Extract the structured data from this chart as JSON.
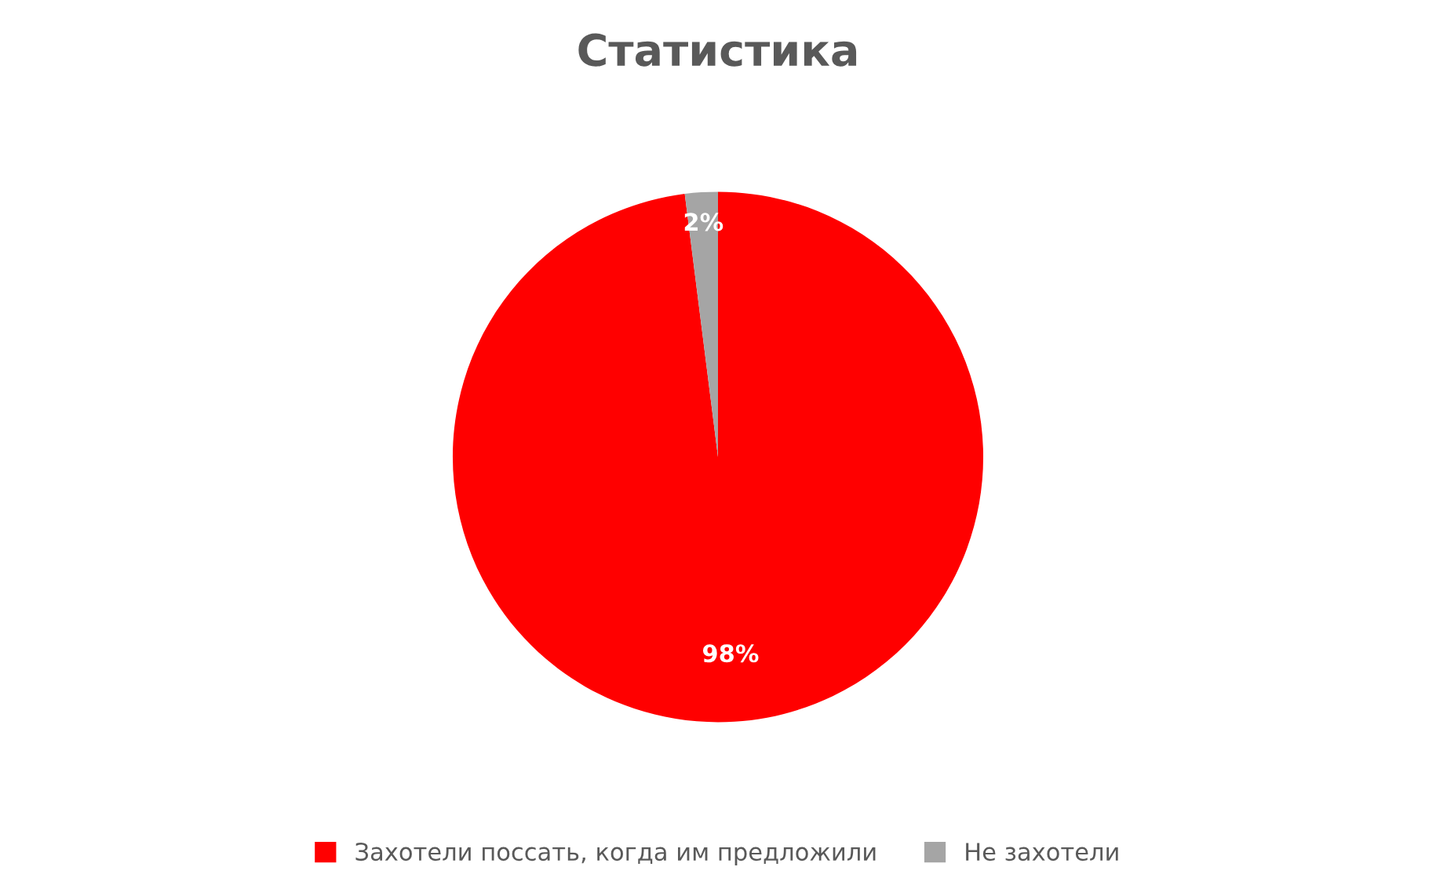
{
  "chart_data": {
    "type": "pie",
    "title": "Статистика",
    "categories": [
      "Захотели поссать, когда им предложили",
      "Не захотели"
    ],
    "values": [
      98,
      2
    ],
    "colors": [
      "#ff0000",
      "#a5a5a5"
    ],
    "value_labels": [
      "98%",
      "2%"
    ],
    "legend": "bottom"
  }
}
